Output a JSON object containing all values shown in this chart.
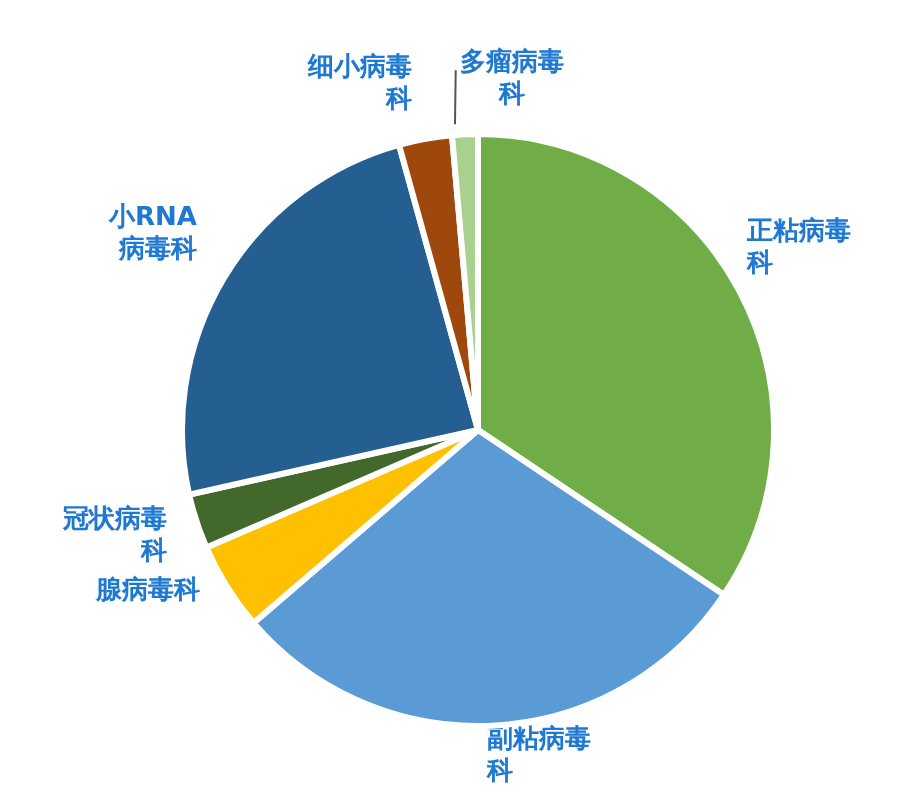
{
  "chart_data": {
    "type": "pie",
    "categories": [
      "正粘病毒科",
      "副粘病毒科",
      "腺病毒科",
      "冠状病毒科",
      "小RNA病毒科",
      "细小病毒科",
      "多瘤病毒科"
    ],
    "values": [
      34.4,
      29.3,
      4.8,
      3.0,
      24.2,
      2.9,
      1.4
    ],
    "colors": [
      "#70ad47",
      "#5b9bd5",
      "#ffc000",
      "#43682b",
      "#255e91",
      "#9e480e",
      "#a9d18e"
    ]
  }
}
